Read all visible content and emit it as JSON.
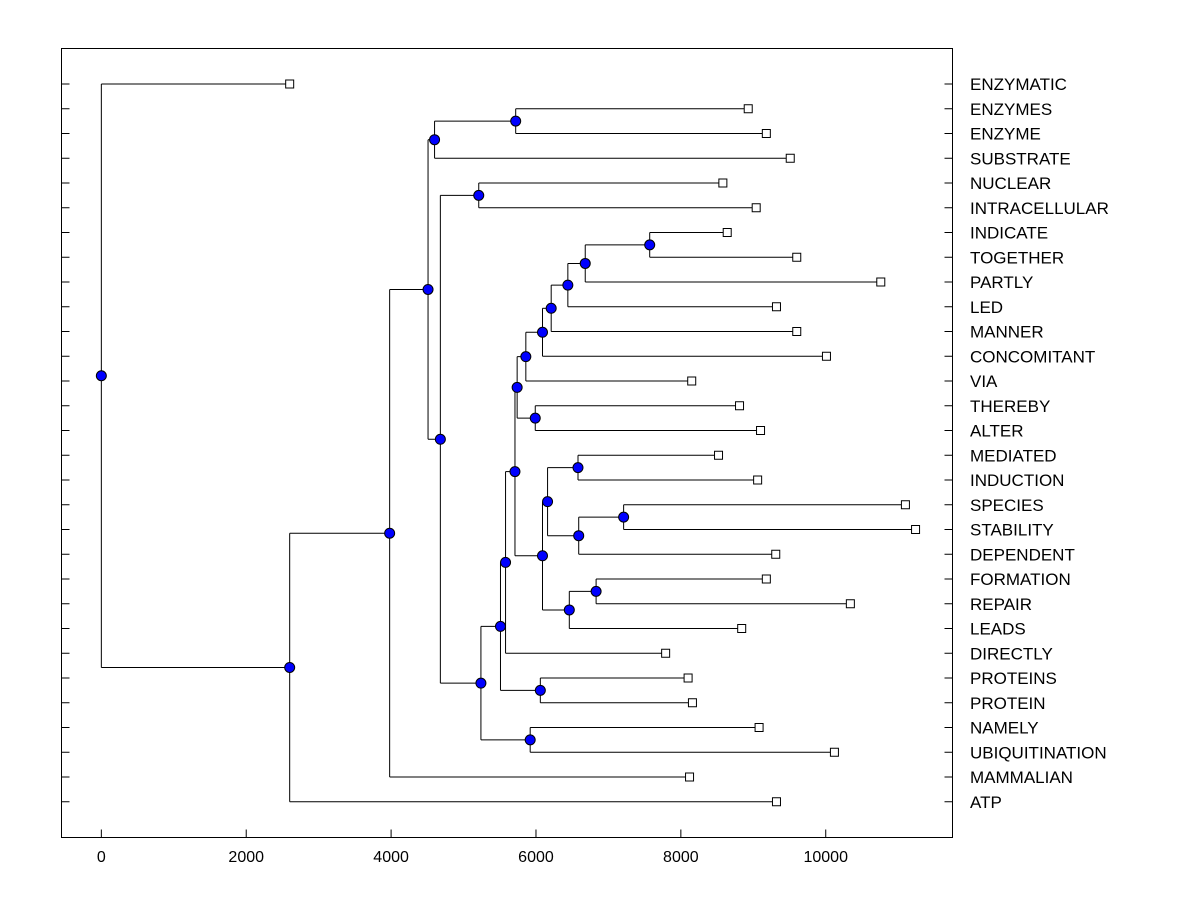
{
  "chart_data": {
    "type": "dendrogram",
    "title": "",
    "xlabel": "",
    "ylabel": "",
    "xlim": [
      -550,
      11750
    ],
    "xticks": [
      0,
      2000,
      4000,
      6000,
      8000,
      10000
    ],
    "xtick_labels": [
      "0",
      "2000",
      "4000",
      "6000",
      "8000",
      "10000"
    ],
    "node_color": "#0000ff",
    "leaves": [
      {
        "label": "ENZYMATIC",
        "x": 2600
      },
      {
        "label": "ENZYMES",
        "x": 8930
      },
      {
        "label": "ENZYME",
        "x": 9180
      },
      {
        "label": "SUBSTRATE",
        "x": 9510
      },
      {
        "label": "NUCLEAR",
        "x": 8580
      },
      {
        "label": "INTRACELLULAR",
        "x": 9040
      },
      {
        "label": "INDICATE",
        "x": 8640
      },
      {
        "label": "TOGETHER",
        "x": 9600
      },
      {
        "label": "PARTLY",
        "x": 10760
      },
      {
        "label": "LED",
        "x": 9320
      },
      {
        "label": "MANNER",
        "x": 9600
      },
      {
        "label": "CONCOMITANT",
        "x": 10010
      },
      {
        "label": "VIA",
        "x": 8150
      },
      {
        "label": "THEREBY",
        "x": 8810
      },
      {
        "label": "ALTER",
        "x": 9100
      },
      {
        "label": "MEDIATED",
        "x": 8520
      },
      {
        "label": "INDUCTION",
        "x": 9060
      },
      {
        "label": "SPECIES",
        "x": 11100
      },
      {
        "label": "STABILITY",
        "x": 11240
      },
      {
        "label": "DEPENDENT",
        "x": 9310
      },
      {
        "label": "FORMATION",
        "x": 9180
      },
      {
        "label": "REPAIR",
        "x": 10340
      },
      {
        "label": "LEADS",
        "x": 8840
      },
      {
        "label": "DIRECTLY",
        "x": 7790
      },
      {
        "label": "PROTEINS",
        "x": 8100
      },
      {
        "label": "PROTEIN",
        "x": 8160
      },
      {
        "label": "NAMELY",
        "x": 9080
      },
      {
        "label": "UBIQUITINATION",
        "x": 10120
      },
      {
        "label": "MAMMALIAN",
        "x": 8120
      },
      {
        "label": "ATP",
        "x": 9320
      }
    ],
    "merges": [
      {
        "a": "ENZYMES",
        "b": "ENZYME",
        "x": 5720
      },
      {
        "a": "m0",
        "b": "SUBSTRATE",
        "x": 4600
      },
      {
        "a": "NUCLEAR",
        "b": "INTRACELLULAR",
        "x": 5210
      },
      {
        "a": "INDICATE",
        "b": "TOGETHER",
        "x": 7570
      },
      {
        "a": "m3",
        "b": "PARTLY",
        "x": 6680
      },
      {
        "a": "m4",
        "b": "LED",
        "x": 6440
      },
      {
        "a": "m5",
        "b": "MANNER",
        "x": 6210
      },
      {
        "a": "m6",
        "b": "CONCOMITANT",
        "x": 6090
      },
      {
        "a": "m7",
        "b": "VIA",
        "x": 5860
      },
      {
        "a": "THEREBY",
        "b": "ALTER",
        "x": 5990
      },
      {
        "a": "m8",
        "b": "m9",
        "x": 5740
      },
      {
        "a": "MEDIATED",
        "b": "INDUCTION",
        "x": 6580
      },
      {
        "a": "SPECIES",
        "b": "STABILITY",
        "x": 7210
      },
      {
        "a": "m12",
        "b": "DEPENDENT",
        "x": 6590
      },
      {
        "a": "m11",
        "b": "m13",
        "x": 6160
      },
      {
        "a": "FORMATION",
        "b": "REPAIR",
        "x": 6830
      },
      {
        "a": "m15",
        "b": "LEADS",
        "x": 6460
      },
      {
        "a": "m14",
        "b": "m16",
        "x": 6090
      },
      {
        "a": "m10",
        "b": "m17",
        "x": 5710
      },
      {
        "a": "m18",
        "b": "DIRECTLY",
        "x": 5580
      },
      {
        "a": "PROTEINS",
        "b": "PROTEIN",
        "x": 6060
      },
      {
        "a": "m19",
        "b": "m20",
        "x": 5510
      },
      {
        "a": "NAMELY",
        "b": "UBIQUITINATION",
        "x": 5920
      },
      {
        "a": "m21",
        "b": "m22",
        "x": 5240
      },
      {
        "a": "m2",
        "b": "m23",
        "x": 4680
      },
      {
        "a": "m1",
        "b": "m24",
        "x": 4510
      },
      {
        "a": "m25",
        "b": "MAMMALIAN",
        "x": 3980
      },
      {
        "a": "m26",
        "b": "ATP",
        "x": 2600
      },
      {
        "a": "ENZYMATIC",
        "b": "m27",
        "x": 0
      }
    ]
  }
}
